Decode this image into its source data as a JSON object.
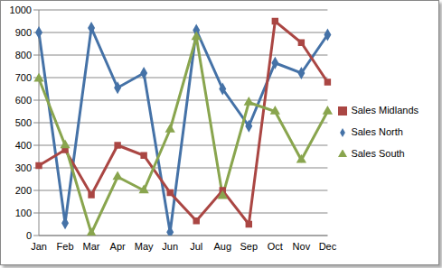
{
  "chart_data": {
    "type": "line",
    "categories": [
      "Jan",
      "Feb",
      "Mar",
      "Apr",
      "May",
      "Jun",
      "Jul",
      "Aug",
      "Sep",
      "Oct",
      "Nov",
      "Dec"
    ],
    "series": [
      {
        "name": "Sales North",
        "color": "#4572a7",
        "marker": "diamond",
        "values": [
          900,
          55,
          920,
          655,
          720,
          15,
          910,
          650,
          485,
          765,
          720,
          890
        ]
      },
      {
        "name": "Sales Midlands",
        "color": "#aa4643",
        "marker": "square",
        "values": [
          310,
          380,
          180,
          400,
          355,
          190,
          65,
          200,
          50,
          950,
          855,
          680
        ]
      },
      {
        "name": "Sales South",
        "color": "#89a54e",
        "marker": "triangle",
        "values": [
          695,
          400,
          10,
          260,
          200,
          470,
          880,
          175,
          590,
          550,
          335,
          550
        ]
      }
    ],
    "ylim": [
      0,
      1000
    ],
    "yticks": [
      0,
      100,
      200,
      300,
      400,
      500,
      600,
      700,
      800,
      900,
      1000
    ],
    "grid": true,
    "legend": "right"
  }
}
